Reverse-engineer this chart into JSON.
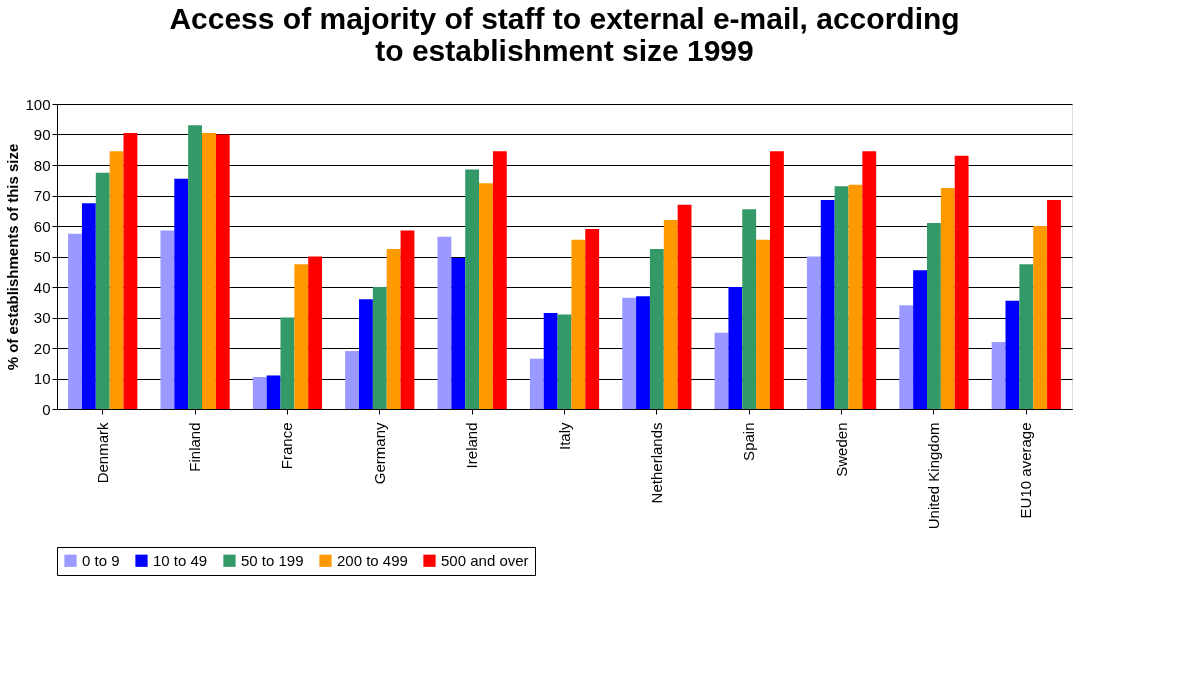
{
  "chart_data": {
    "type": "bar",
    "title": "Access of majority of staff  to external e-mail, according to establishment size 1999",
    "ylabel": "% of establishments of this size",
    "categories": [
      "Denmark",
      "Finland",
      "France",
      "Germany",
      "Ireland",
      "Italy",
      "Netherlands",
      "Spain",
      "Sweden",
      "United Kingdom",
      "EU10 average"
    ],
    "series": [
      {
        "name": "0 to 9",
        "color": "#9999ff",
        "values": [
          57.5,
          58.5,
          10.5,
          19,
          56.5,
          16.5,
          36.5,
          25,
          50,
          34,
          22
        ]
      },
      {
        "name": "10 to 49",
        "color": "#0000ff",
        "values": [
          67.5,
          75.5,
          11,
          36,
          49.5,
          31.5,
          37,
          40,
          68.5,
          45.5,
          35.5
        ]
      },
      {
        "name": "50 to 199",
        "color": "#339966",
        "values": [
          77.5,
          93,
          30,
          40,
          78.5,
          31,
          52.5,
          65.5,
          73,
          61,
          47.5
        ]
      },
      {
        "name": "200 to 499",
        "color": "#ff9900",
        "values": [
          84.5,
          90.5,
          47.5,
          52.5,
          74,
          55.5,
          62,
          55.5,
          73.5,
          72.5,
          60
        ]
      },
      {
        "name": "500 and over",
        "color": "#ff0000",
        "values": [
          90.5,
          90,
          50,
          58.5,
          84.5,
          59,
          67,
          84.5,
          84.5,
          83,
          68.5
        ]
      }
    ],
    "ylim": [
      0,
      100
    ],
    "yticks": [
      0,
      10,
      20,
      30,
      40,
      50,
      60,
      70,
      80,
      90,
      100
    ],
    "grid": "y",
    "legend": "bottom"
  }
}
